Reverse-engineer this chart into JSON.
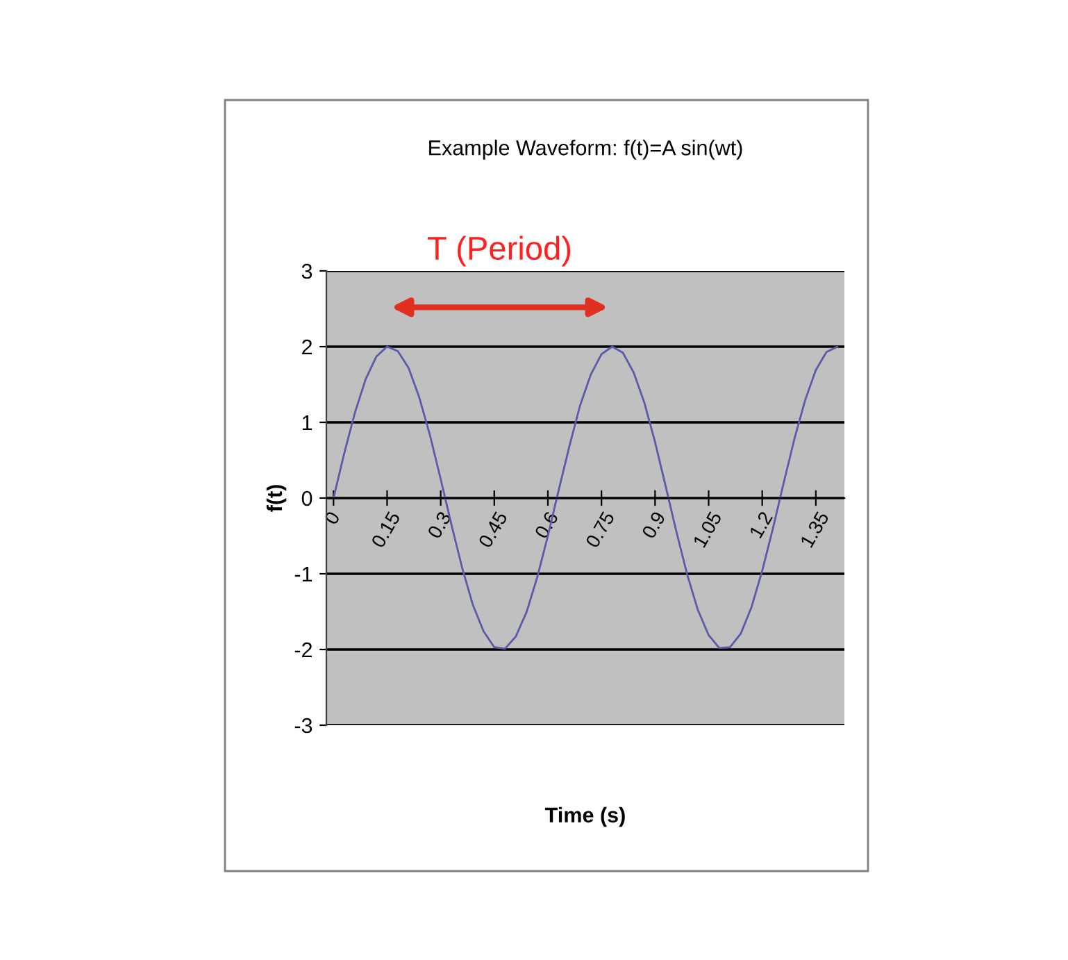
{
  "chart_data": {
    "type": "line",
    "title": "Example Waveform: f(t)=A sin(wt)",
    "xlabel": "Time (s)",
    "ylabel": "f(t)",
    "x": [
      0,
      0.03,
      0.06,
      0.09,
      0.12,
      0.15,
      0.18,
      0.21,
      0.24,
      0.27,
      0.3,
      0.33,
      0.36,
      0.39,
      0.42,
      0.45,
      0.48,
      0.51,
      0.54,
      0.57,
      0.6,
      0.63,
      0.66,
      0.69,
      0.72,
      0.75,
      0.78,
      0.81,
      0.84,
      0.87,
      0.9,
      0.93,
      0.96,
      0.99,
      1.02,
      1.05,
      1.08,
      1.11,
      1.14,
      1.17,
      1.2,
      1.23,
      1.26,
      1.29,
      1.32,
      1.35,
      1.38,
      1.41
    ],
    "series": [
      {
        "color": "#5a5aa8",
        "values": [
          0,
          0.59,
          1.13,
          1.57,
          1.87,
          2.0,
          1.94,
          1.72,
          1.33,
          0.83,
          0.25,
          -0.35,
          -0.92,
          -1.41,
          -1.76,
          -1.97,
          -1.99,
          -1.83,
          -1.51,
          -1.05,
          -0.5,
          0.1,
          0.68,
          1.22,
          1.63,
          1.9,
          2.0,
          1.92,
          1.66,
          1.26,
          0.74,
          0.15,
          -0.45,
          -1.01,
          -1.48,
          -1.81,
          -1.98,
          -1.97,
          -1.79,
          -1.44,
          -0.96,
          -0.4,
          0.2,
          0.78,
          1.29,
          1.69,
          1.93,
          2.0
        ]
      }
    ],
    "xlim": [
      -0.02,
      1.43
    ],
    "xticks": [
      0,
      0.15,
      0.3,
      0.45,
      0.6,
      0.75,
      0.9,
      1.05,
      1.2,
      1.35
    ],
    "ylim": [
      -3,
      3
    ],
    "yticks": [
      -3,
      -2,
      -1,
      0,
      1,
      2,
      3
    ],
    "grid": "y",
    "legend": false,
    "marker": "none",
    "line_style": "solid",
    "annotations": [
      "T (Period)"
    ]
  }
}
